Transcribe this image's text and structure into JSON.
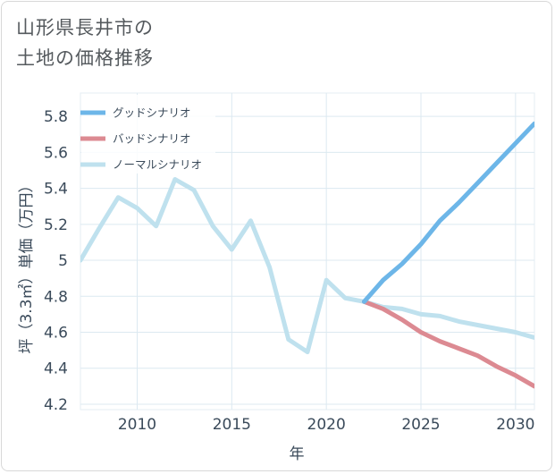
{
  "title_line1": "山形県長井市の",
  "title_line2": "土地の価格推移",
  "chart_data": {
    "type": "line",
    "xlabel": "年",
    "ylabel": "坪（3.3㎡）単価（万円）",
    "xlim": [
      2007,
      2031
    ],
    "ylim": [
      4.17,
      5.93
    ],
    "x_ticks": [
      2010,
      2015,
      2020,
      2025,
      2030
    ],
    "y_ticks": [
      4.2,
      4.4,
      4.6,
      4.8,
      5,
      5.2,
      5.4,
      5.6,
      5.8
    ],
    "x_tick_labels": [
      "2010",
      "2015",
      "2020",
      "2025",
      "2030"
    ],
    "y_tick_labels": [
      "4.2",
      "4.4",
      "4.6",
      "4.8",
      "5",
      "5.2",
      "5.4",
      "5.6",
      "5.8"
    ],
    "grid": true,
    "legend_position": "top-left",
    "series": [
      {
        "name": "グッドシナリオ",
        "color": "#6db6e8",
        "x": [
          2022,
          2023,
          2024,
          2025,
          2026,
          2027,
          2028,
          2029,
          2030,
          2031
        ],
        "y": [
          4.77,
          4.89,
          4.98,
          5.09,
          5.22,
          5.32,
          5.43,
          5.54,
          5.65,
          5.76
        ]
      },
      {
        "name": "バッドシナリオ",
        "color": "#dc8a92",
        "x": [
          2022,
          2023,
          2024,
          2025,
          2026,
          2027,
          2028,
          2029,
          2030,
          2031
        ],
        "y": [
          4.77,
          4.73,
          4.67,
          4.6,
          4.55,
          4.51,
          4.47,
          4.41,
          4.36,
          4.3
        ]
      },
      {
        "name": "ノーマルシナリオ",
        "color": "#bfe1ee",
        "x": [
          2007,
          2008,
          2009,
          2010,
          2011,
          2012,
          2013,
          2014,
          2015,
          2016,
          2017,
          2018,
          2019,
          2020,
          2021,
          2022,
          2023,
          2024,
          2025,
          2026,
          2027,
          2028,
          2029,
          2030,
          2031
        ],
        "y": [
          5.0,
          5.18,
          5.35,
          5.29,
          5.19,
          5.45,
          5.39,
          5.19,
          5.06,
          5.22,
          4.96,
          4.56,
          4.49,
          4.89,
          4.79,
          4.77,
          4.74,
          4.73,
          4.7,
          4.69,
          4.66,
          4.64,
          4.62,
          4.6,
          4.57
        ]
      }
    ]
  }
}
